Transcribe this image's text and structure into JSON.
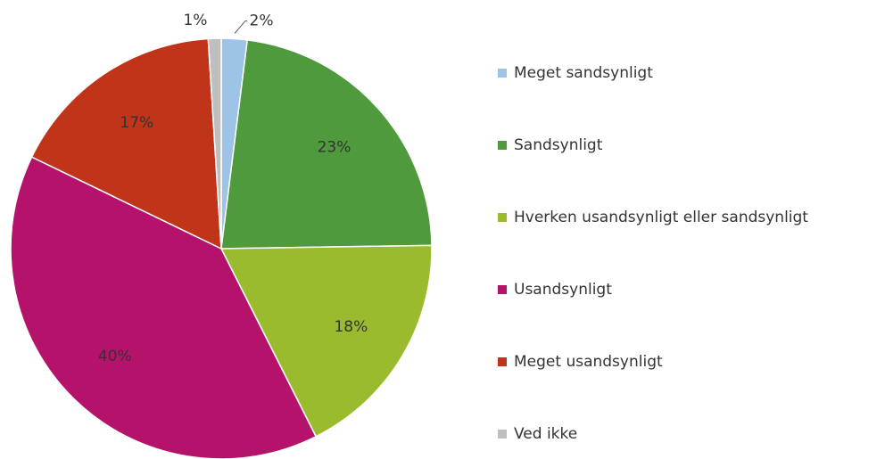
{
  "chart_data": {
    "type": "pie",
    "categories": [
      "Meget sandsynligt",
      "Sandsynligt",
      "Hverken usandsynligt eller sandsynligt",
      "Usandsynligt",
      "Meget usandsynligt",
      "Ved ikke"
    ],
    "values": [
      2,
      23,
      18,
      40,
      17,
      1
    ],
    "value_labels": [
      "2%",
      "23%",
      "18%",
      "40%",
      "17%",
      "1%"
    ],
    "colors": [
      "#9dc3e6",
      "#4e9a3c",
      "#9bbb2f",
      "#b5136b",
      "#c0341a",
      "#bfbfbf"
    ],
    "legend": "right"
  }
}
